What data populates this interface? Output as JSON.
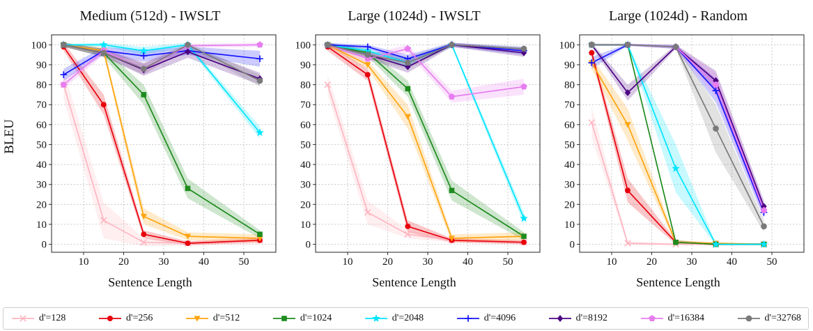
{
  "figure": {
    "ylabel": "BLEU",
    "xlabel": "Sentence Length"
  },
  "legend": {
    "position": "bottom",
    "items": [
      {
        "label": "d'=128",
        "color": "#ffb6c1",
        "marker": "x"
      },
      {
        "label": "d'=256",
        "color": "#e8000b",
        "marker": "circle"
      },
      {
        "label": "d'=512",
        "color": "#ffa510",
        "marker": "triangle-down"
      },
      {
        "label": "d'=1024",
        "color": "#1e8b1e",
        "marker": "square"
      },
      {
        "label": "d'=2048",
        "color": "#00e5ff",
        "marker": "star"
      },
      {
        "label": "d'=4096",
        "color": "#1414ff",
        "marker": "plus"
      },
      {
        "label": "d'=8192",
        "color": "#4b0082",
        "marker": "diamond"
      },
      {
        "label": "d'=16384",
        "color": "#e77df0",
        "marker": "pentagon"
      },
      {
        "label": "d'=32768",
        "color": "#7a7a7a",
        "marker": "octagon"
      }
    ]
  },
  "chart_data": [
    {
      "type": "line",
      "title": "Medium (512d) - IWSLT",
      "xlabel": "Sentence Length",
      "ylabel": "BLEU",
      "grid": true,
      "xlim": [
        2,
        58
      ],
      "ylim": [
        -4,
        105
      ],
      "xticks": [
        10,
        20,
        30,
        40,
        50
      ],
      "yticks": [
        0,
        10,
        20,
        30,
        40,
        50,
        60,
        70,
        80,
        90,
        100
      ],
      "x": [
        5,
        15,
        25,
        36,
        54
      ],
      "series": [
        {
          "name": "d'=128",
          "values": [
            80,
            12,
            1,
            0.5,
            2
          ],
          "band": [
            7,
            9,
            2,
            1,
            2
          ]
        },
        {
          "name": "d'=256",
          "values": [
            99,
            70,
            5,
            0.5,
            2
          ],
          "band": [
            2,
            5,
            2,
            1,
            1
          ]
        },
        {
          "name": "d'=512",
          "values": [
            100,
            97,
            14,
            4,
            3
          ],
          "band": [
            1,
            2,
            4,
            2,
            2
          ]
        },
        {
          "name": "d'=1024",
          "values": [
            100,
            96,
            75,
            28,
            5
          ],
          "band": [
            1,
            2,
            5,
            5,
            2
          ]
        },
        {
          "name": "d'=2048",
          "values": [
            100,
            100,
            97,
            100,
            56
          ],
          "band": [
            0.5,
            1,
            2,
            1,
            3
          ]
        },
        {
          "name": "d'=4096",
          "values": [
            85,
            97,
            94.5,
            97,
            93
          ],
          "band": [
            3,
            2,
            3,
            2,
            4
          ]
        },
        {
          "name": "d'=8192",
          "values": [
            100,
            96,
            87.5,
            96.5,
            83
          ],
          "band": [
            1,
            2,
            3,
            3,
            3
          ]
        },
        {
          "name": "d'=16384",
          "values": [
            80,
            97,
            88,
            99.5,
            100
          ],
          "band": [
            2,
            2,
            3,
            1,
            1
          ]
        },
        {
          "name": "d'=32768",
          "values": [
            100,
            96,
            88,
            100,
            82
          ],
          "band": [
            1,
            2,
            3,
            1,
            3
          ]
        }
      ]
    },
    {
      "type": "line",
      "title": "Large (1024d) - IWSLT",
      "xlabel": "Sentence Length",
      "ylabel": "BLEU",
      "grid": true,
      "xlim": [
        2,
        58
      ],
      "ylim": [
        -4,
        105
      ],
      "xticks": [
        10,
        20,
        30,
        40,
        50
      ],
      "yticks": [
        0,
        10,
        20,
        30,
        40,
        50,
        60,
        70,
        80,
        90,
        100
      ],
      "x": [
        5,
        15,
        25,
        36,
        54
      ],
      "series": [
        {
          "name": "d'=128",
          "values": [
            80,
            16,
            5,
            2,
            1
          ],
          "band": [
            5,
            6,
            2,
            1,
            1
          ]
        },
        {
          "name": "d'=256",
          "values": [
            99,
            85,
            9,
            2,
            1
          ],
          "band": [
            2,
            3,
            3,
            1,
            1
          ]
        },
        {
          "name": "d'=512",
          "values": [
            100,
            90,
            64,
            3,
            4
          ],
          "band": [
            1,
            2,
            6,
            2,
            2
          ]
        },
        {
          "name": "d'=1024",
          "values": [
            100,
            96,
            78,
            27,
            4
          ],
          "band": [
            1,
            2,
            4,
            5,
            2
          ]
        },
        {
          "name": "d'=2048",
          "values": [
            100,
            97,
            91,
            100,
            13
          ],
          "band": [
            0.5,
            1,
            2,
            1,
            3
          ]
        },
        {
          "name": "d'=4096",
          "values": [
            100,
            99,
            93,
            100,
            97
          ],
          "band": [
            1,
            1,
            2,
            1,
            2
          ]
        },
        {
          "name": "d'=8192",
          "values": [
            100,
            95,
            89,
            100,
            96
          ],
          "band": [
            1,
            2,
            3,
            1,
            2
          ]
        },
        {
          "name": "d'=16384",
          "values": [
            100,
            93,
            98,
            74,
            79
          ],
          "band": [
            1,
            2,
            2,
            3,
            4
          ]
        },
        {
          "name": "d'=32768",
          "values": [
            100,
            95,
            91,
            100,
            98
          ],
          "band": [
            1,
            2,
            3,
            1,
            1
          ]
        }
      ]
    },
    {
      "type": "line",
      "title": "Large (1024d) - Random",
      "xlabel": "Sentence Length",
      "ylabel": "BLEU",
      "grid": true,
      "xlim": [
        2,
        58
      ],
      "ylim": [
        -4,
        105
      ],
      "xticks": [
        10,
        20,
        30,
        40,
        50
      ],
      "yticks": [
        0,
        10,
        20,
        30,
        40,
        50,
        60,
        70,
        80,
        90,
        100
      ],
      "x": [
        5,
        14,
        26,
        36,
        48
      ],
      "series": [
        {
          "name": "d'=128",
          "values": [
            61,
            0.5,
            0,
            0,
            0
          ],
          "band": [
            8,
            1,
            0.5,
            0.5,
            0.5
          ]
        },
        {
          "name": "d'=256",
          "values": [
            96,
            27,
            1,
            0,
            0
          ],
          "band": [
            2,
            6,
            1,
            0.5,
            0.5
          ]
        },
        {
          "name": "d'=512",
          "values": [
            91,
            60,
            1,
            0.5,
            0
          ],
          "band": [
            3,
            8,
            1,
            0.5,
            0.5
          ]
        },
        {
          "name": "d'=1024",
          "values": [
            100,
            100,
            1,
            0,
            0
          ],
          "band": [
            0.5,
            0.5,
            1,
            0.5,
            0.5
          ]
        },
        {
          "name": "d'=2048",
          "values": [
            100,
            100,
            38,
            0,
            0
          ],
          "band": [
            0.5,
            0.5,
            12,
            0.5,
            0.5
          ]
        },
        {
          "name": "d'=4096",
          "values": [
            91,
            100,
            99,
            77,
            16
          ],
          "band": [
            3,
            0.5,
            1,
            6,
            3
          ]
        },
        {
          "name": "d'=8192",
          "values": [
            100,
            76,
            99,
            82,
            19
          ],
          "band": [
            1,
            4,
            1,
            5,
            3
          ]
        },
        {
          "name": "d'=16384",
          "values": [
            100,
            100,
            99,
            80,
            17
          ],
          "band": [
            0.5,
            0.5,
            1,
            6,
            3
          ]
        },
        {
          "name": "d'=32768",
          "values": [
            100,
            100,
            99,
            58,
            9
          ],
          "band": [
            0.5,
            0.5,
            1,
            12,
            3
          ]
        }
      ]
    }
  ]
}
